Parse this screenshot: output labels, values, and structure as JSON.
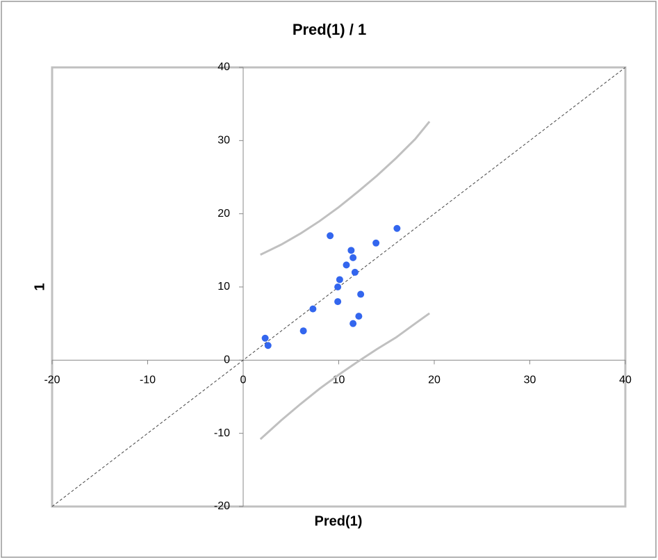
{
  "chart_data": {
    "type": "scatter",
    "title": "Pred(1) / 1",
    "x_label": "Pred(1)",
    "y_label": "1",
    "x": [
      2.3,
      2.6,
      6.3,
      7.3,
      9.1,
      9.9,
      9.9,
      10.1,
      10.8,
      11.3,
      11.5,
      11.5,
      11.7,
      12.1,
      12.3,
      13.9,
      16.1
    ],
    "y": [
      3,
      2,
      4,
      7,
      17,
      8,
      10,
      11,
      13,
      15,
      14,
      5,
      12,
      6,
      9,
      16,
      18
    ],
    "color": "#3366ee",
    "bands": [
      {
        "x": [
          1.8,
          4,
          6,
          8,
          10,
          12,
          14,
          16,
          18,
          19.5
        ],
        "y": [
          14.4,
          15.8,
          17.3,
          19.0,
          20.9,
          23.0,
          25.2,
          27.6,
          30.2,
          32.6
        ]
      },
      {
        "x": [
          1.8,
          4,
          6,
          8,
          10,
          12,
          14,
          16,
          18,
          19.5
        ],
        "y": [
          -10.8,
          -8.2,
          -6.0,
          -3.9,
          -2.0,
          -0.2,
          1.5,
          3.1,
          5.0,
          6.4
        ]
      }
    ],
    "band_color": "#c0c0c0",
    "identity_line": true,
    "xlim": [
      -20,
      40
    ],
    "ylim": [
      -20,
      40
    ],
    "xticks": [
      -20,
      -10,
      0,
      10,
      20,
      30,
      40
    ],
    "yticks": [
      -20,
      -10,
      0,
      10,
      20,
      30,
      40
    ]
  }
}
